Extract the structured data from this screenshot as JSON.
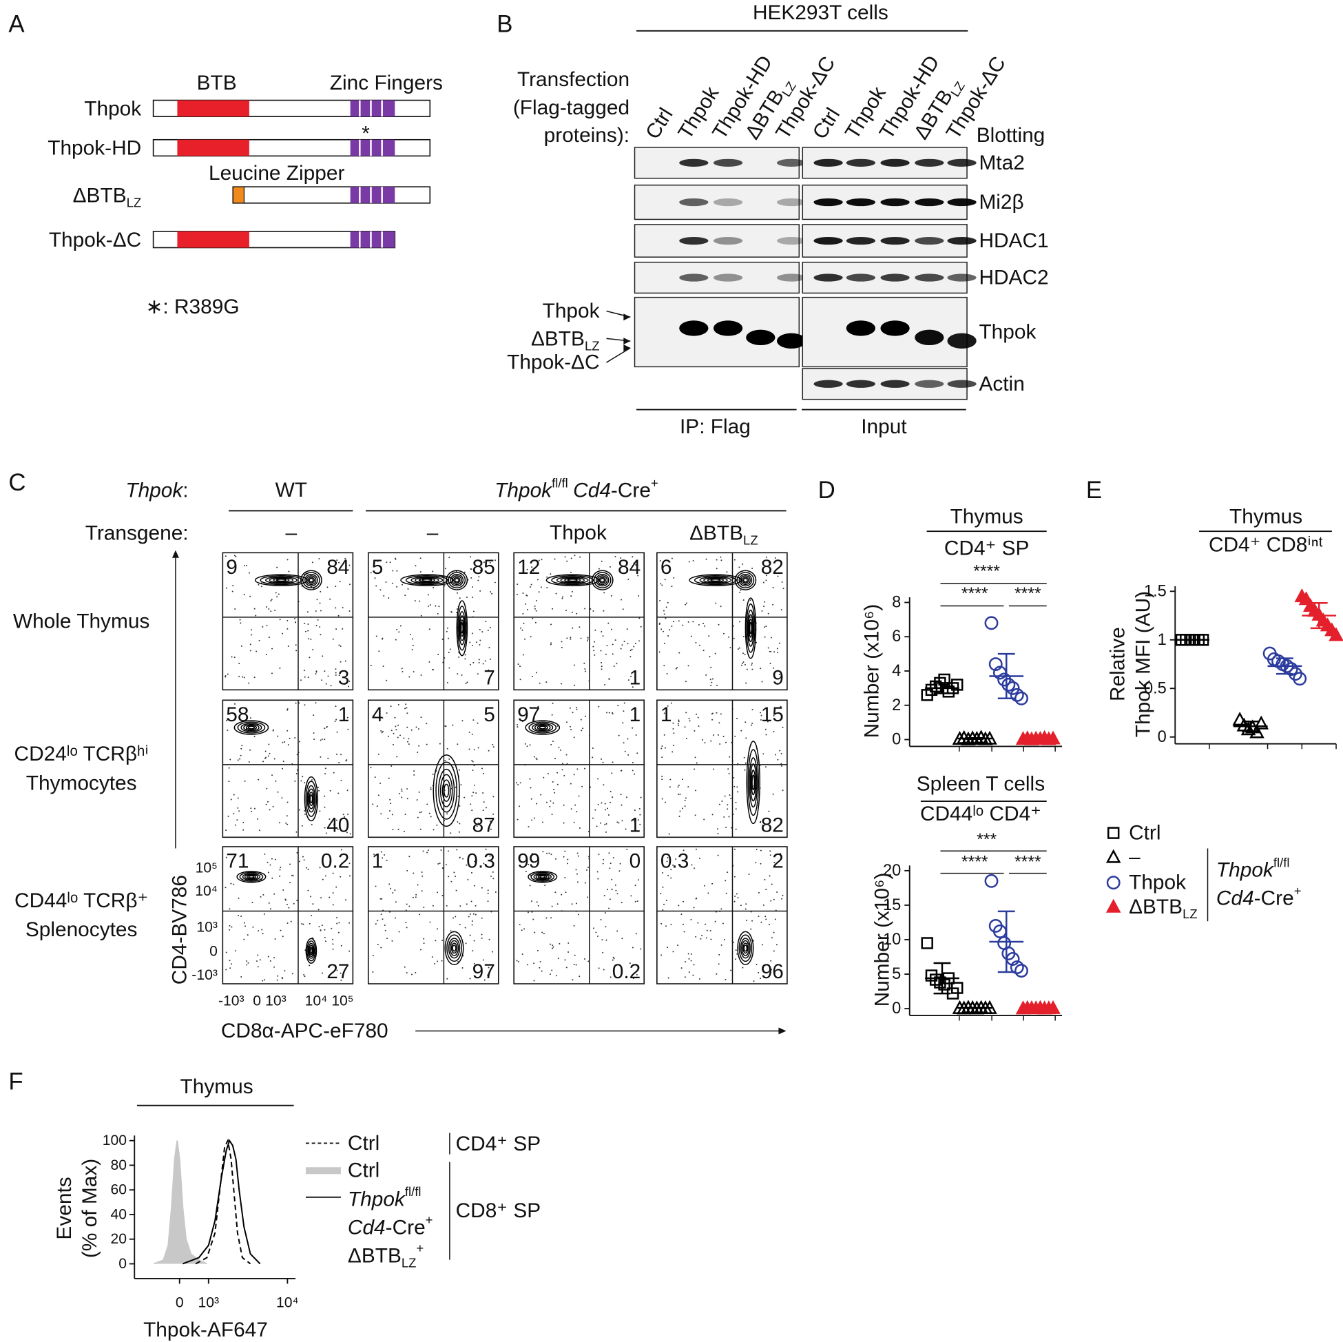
{
  "panel_labels": [
    "A",
    "B",
    "C",
    "D",
    "E",
    "F"
  ],
  "subscript_lz": "LZ",
  "panel_a": {
    "domains": [
      "BTB",
      "Zinc Fingers",
      "Leucine Zipper"
    ],
    "constructs": [
      "Thpok",
      "Thpok-HD",
      "ΔBTB",
      "Thpok-ΔC"
    ],
    "mutation_star": "*",
    "mutation_note": "∗: R389G"
  },
  "panel_b": {
    "header": "HEK293T cells",
    "transfection": [
      "Transfection",
      "(Flag-tagged",
      "proteins):"
    ],
    "lanes": [
      "Ctrl",
      "Thpok",
      "Thpok-HD",
      "ΔBTB",
      "Thpok-ΔC"
    ],
    "blotting": "Blotting",
    "blots": [
      "Mta2",
      "Mi2β",
      "HDAC1",
      "HDAC2",
      "Thpok",
      "Actin"
    ],
    "bands": [
      "Thpok",
      "ΔBTB",
      "Thpok-ΔC"
    ],
    "groups": [
      "IP: Flag",
      "Input"
    ]
  },
  "panel_c": {
    "gene_label": "Thpok",
    "transgene_label": "Transgene",
    "colon": ":",
    "genotypes": [
      "WT",
      {
        "gene": "Thpok",
        "allele": "fl/fl",
        "driver": "Cd4",
        "cre": "-Cre",
        "sup": "+"
      }
    ],
    "transgenes": [
      "–",
      "–",
      "Thpok",
      "ΔBTB"
    ],
    "rows": [
      [
        "Whole Thymus"
      ],
      [
        "CD24ˡᵒ TCRβʰⁱ",
        "Thymocytes"
      ],
      [
        "CD44ˡᵒ TCRβ⁺",
        "Splenocytes"
      ]
    ],
    "quadrants": [
      [
        [
          9,
          84,
          3
        ],
        [
          5,
          85,
          7
        ],
        [
          12,
          84,
          1
        ],
        [
          6,
          82,
          9
        ]
      ],
      [
        [
          58,
          1,
          40
        ],
        [
          4,
          5,
          87
        ],
        [
          97,
          1,
          1
        ],
        [
          1,
          15,
          82
        ]
      ],
      [
        [
          71,
          0.2,
          27
        ],
        [
          1,
          0.3,
          97
        ],
        [
          99,
          0,
          0.2
        ],
        [
          0.3,
          2,
          96
        ]
      ]
    ],
    "y_label": "CD4-BV786",
    "x_label": "CD8α-APC-eF780",
    "y_tick_labels": [
      "10⁵",
      "10⁴",
      "10³",
      "0",
      "-10³"
    ],
    "x_tick_labels": [
      "-10³",
      "0",
      "10³",
      "10⁴",
      "10⁵"
    ]
  },
  "chart_data": [
    {
      "type": "strip",
      "title": "Thymus",
      "subtitle": "CD4⁺ SP",
      "y_label": "Number (x10⁶)",
      "ylim": [
        0,
        8
      ],
      "yticks": [
        0,
        2,
        4,
        6,
        8
      ],
      "significance": [
        "****",
        "****",
        "****"
      ],
      "series": [
        {
          "color": "#000000",
          "marker": "square",
          "values": [
            2.6,
            2.9,
            3.1,
            3.3,
            3.5,
            2.8,
            3.0,
            3.2
          ],
          "mean": 3.0,
          "sd": 0.3
        },
        {
          "color": "#000000",
          "marker": "triangle",
          "values": [
            0.05,
            0.1,
            0.02,
            0.08,
            0.05,
            0.12,
            0.03,
            0.06
          ],
          "mean": 0.06,
          "sd": 0.03
        },
        {
          "color": "#2b3b9e",
          "marker": "circle",
          "values": [
            6.8,
            4.4,
            3.9,
            3.5,
            3.2,
            3.0,
            2.6,
            2.4
          ],
          "mean": 3.7,
          "sd": 1.3
        },
        {
          "color": "#e3202b",
          "marker": "filled-triangle",
          "values": [
            0.04,
            0.08,
            0.02,
            0.06,
            0.05,
            0.1,
            0.03,
            0.07
          ],
          "mean": 0.06,
          "sd": 0.03
        }
      ]
    },
    {
      "type": "strip",
      "title": "Spleen T cells",
      "subtitle": "CD44ˡᵒ CD4⁺",
      "y_label": "Number (x10⁶)",
      "ylim": [
        0,
        20
      ],
      "yticks": [
        0,
        5,
        10,
        15,
        20
      ],
      "significance": [
        "***",
        "****",
        "****"
      ],
      "series": [
        {
          "color": "#000000",
          "marker": "square",
          "values": [
            9.5,
            4.8,
            4.2,
            3.8,
            3.5,
            4.4,
            2.2,
            3.0
          ],
          "mean": 4.4,
          "sd": 2.2
        },
        {
          "color": "#000000",
          "marker": "triangle",
          "values": [
            0.1,
            0.05,
            0.15,
            0.1,
            0.05,
            0.12,
            0.08,
            0.1
          ],
          "mean": 0.1,
          "sd": 0.03
        },
        {
          "color": "#2b3b9e",
          "marker": "circle",
          "values": [
            18.5,
            12.0,
            11.2,
            9.5,
            8.0,
            7.2,
            6.0,
            5.5
          ],
          "mean": 9.7,
          "sd": 4.4
        },
        {
          "color": "#e3202b",
          "marker": "filled-triangle",
          "values": [
            0.05,
            0.1,
            0.08,
            0.06,
            0.12,
            0.05,
            0.07,
            0.09
          ],
          "mean": 0.08,
          "sd": 0.02
        }
      ]
    },
    {
      "type": "strip",
      "title": "Thymus",
      "subtitle": "CD4⁺ CD8ⁱⁿᵗ",
      "y_label": [
        "Relative",
        "Thpok MFI (AU)"
      ],
      "ylim": [
        0,
        1.5
      ],
      "yticks": [
        0,
        0.5,
        1,
        1.5
      ],
      "series": [
        {
          "name": "Ctrl",
          "color": "#000000",
          "marker": "square",
          "values": [
            1,
            1,
            1,
            1,
            1,
            1
          ],
          "mean": 1,
          "sd": 0
        },
        {
          "name": "–",
          "color": "#000000",
          "marker": "triangle",
          "values": [
            0.18,
            0.12,
            0.08,
            0.1,
            0.05,
            0.14
          ],
          "mean": 0.11,
          "sd": 0.05
        },
        {
          "name": "Thpok",
          "color": "#2b3b9e",
          "marker": "circle",
          "values": [
            0.86,
            0.8,
            0.78,
            0.75,
            0.73,
            0.7,
            0.65,
            0.6
          ],
          "mean": 0.73,
          "sd": 0.08
        },
        {
          "name": "ΔBTB",
          "color": "#e3202b",
          "marker": "filled-triangle",
          "values": [
            1.45,
            1.42,
            1.35,
            1.3,
            1.26,
            1.2,
            1.15,
            1.1,
            1.05
          ],
          "mean": 1.25,
          "sd": 0.13
        }
      ]
    },
    {
      "type": "line",
      "title": "Thymus",
      "x_label": "Thpok-AF647",
      "y_label": [
        "Events",
        "(% of Max)"
      ],
      "xlim": [
        0,
        100
      ],
      "xticks": [
        {
          "value": 28,
          "label": "0"
        },
        {
          "value": 46,
          "label": "10³"
        },
        {
          "value": 95,
          "label": "10⁴"
        }
      ],
      "ylim": [
        -12,
        100
      ],
      "yticks": [
        0,
        20,
        40,
        60,
        80,
        100
      ],
      "groups": [
        "CD4⁺ SP",
        "CD8⁺ SP"
      ],
      "series": [
        {
          "name": "Ctrl",
          "color": "#000000",
          "style": "dashed",
          "x": [
            38,
            45,
            50,
            53,
            56,
            58,
            60,
            62,
            64,
            67,
            72
          ],
          "values": [
            0,
            5,
            25,
            60,
            95,
            100,
            85,
            55,
            25,
            5,
            0
          ]
        },
        {
          "name": "Ctrl",
          "color": "#c8c8c8",
          "style": "filled",
          "x": [
            12,
            18,
            21,
            23,
            25,
            26.5,
            28,
            30,
            32,
            35,
            40,
            45
          ],
          "values": [
            0,
            3,
            15,
            45,
            85,
            100,
            85,
            45,
            20,
            8,
            3,
            0
          ]
        },
        {
          "color": "#000000",
          "style": "solid",
          "x": [
            30,
            40,
            46,
            50,
            54,
            57,
            59,
            61,
            63,
            65,
            68,
            72,
            78
          ],
          "values": [
            0,
            5,
            15,
            35,
            70,
            92,
            100,
            96,
            85,
            60,
            30,
            8,
            0
          ]
        }
      ]
    }
  ]
}
